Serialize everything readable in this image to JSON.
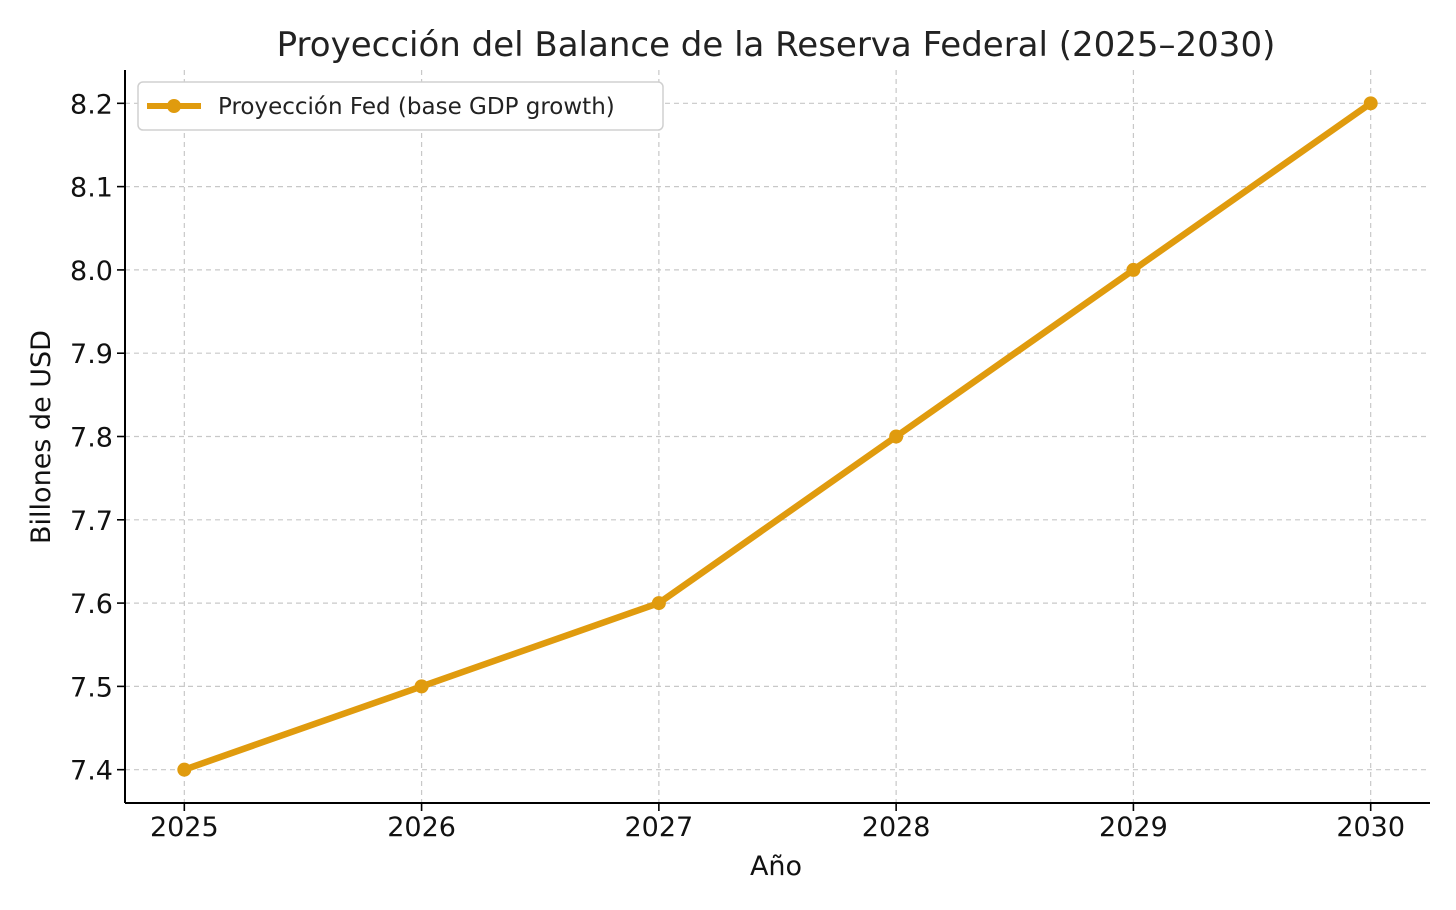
{
  "chart_data": {
    "type": "line",
    "title": "Proyección del Balance de la Reserva Federal (2025–2030)",
    "xlabel": "Año",
    "ylabel": "Billones de USD",
    "x": [
      2025,
      2026,
      2027,
      2028,
      2029,
      2030
    ],
    "x_tick_labels": [
      "2025",
      "2026",
      "2027",
      "2028",
      "2029",
      "2030"
    ],
    "y_ticks": [
      7.4,
      7.5,
      7.6,
      7.7,
      7.8,
      7.9,
      8.0,
      8.1,
      8.2
    ],
    "y_tick_labels": [
      "7.4",
      "7.5",
      "7.6",
      "7.7",
      "7.8",
      "7.9",
      "8.0",
      "8.1",
      "8.2"
    ],
    "xlim": [
      2024.75,
      2030.25
    ],
    "ylim": [
      7.36,
      8.24
    ],
    "grid": true,
    "legend_position": "top-left",
    "series": [
      {
        "name": "Proyección Fed (base GDP growth)",
        "color": "#E09B0E",
        "marker": "circle",
        "values": [
          7.4,
          7.5,
          7.6,
          7.8,
          8.0,
          8.2
        ]
      }
    ]
  }
}
